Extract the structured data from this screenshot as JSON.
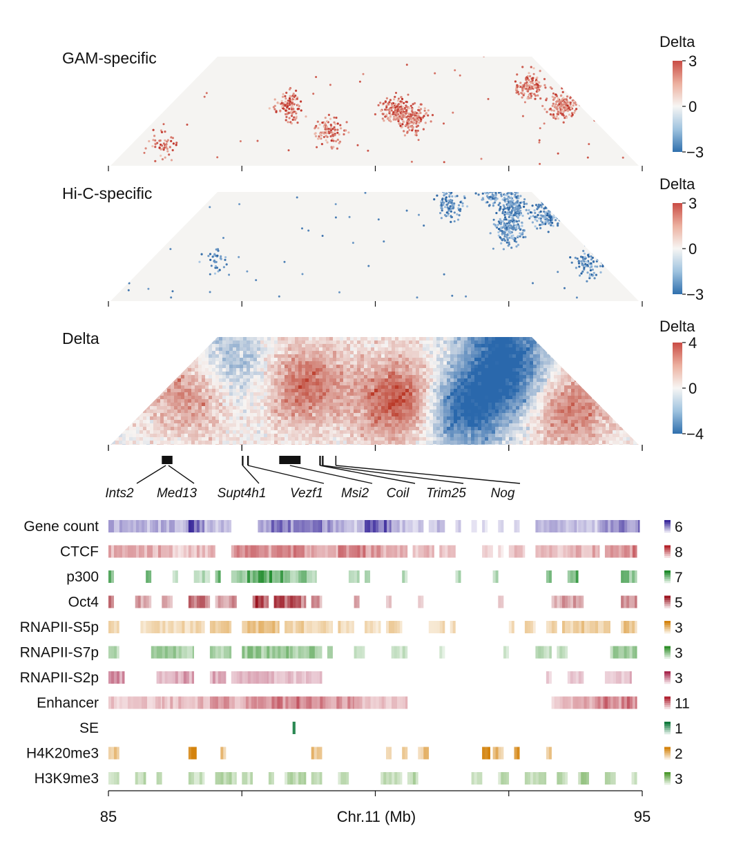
{
  "chart_data": {
    "type": "heatmap",
    "genomic_axis": {
      "title": "Chr.11 (Mb)",
      "range_mb": [
        85,
        95
      ],
      "tick_values_mb": [
        85,
        87.5,
        90,
        92.5,
        95
      ],
      "tick_labels": [
        "85",
        "",
        "",
        "",
        "95"
      ]
    },
    "contact_maps": [
      {
        "title": "GAM-specific",
        "colorbar": {
          "title": "Delta",
          "min": -3,
          "max": 3,
          "ticks": [
            "3",
            "0",
            "−3"
          ]
        },
        "sign": "positive",
        "hotspots_mb": [
          {
            "i": 87.3,
            "j": 89.5,
            "density": 0.7
          },
          {
            "i": 88.5,
            "j": 89.8,
            "density": 0.6
          },
          {
            "i": 89.3,
            "j": 91.4,
            "density": 0.8
          },
          {
            "i": 89.8,
            "j": 91.6,
            "density": 1.0
          },
          {
            "i": 91.4,
            "j": 94.4,
            "density": 0.8
          },
          {
            "i": 92.4,
            "j": 94.6,
            "density": 0.9
          },
          {
            "i": 85.6,
            "j": 86.4,
            "density": 0.3
          }
        ]
      },
      {
        "title": "Hi-C-specific",
        "colorbar": {
          "title": "Delta",
          "min": -3,
          "max": 3,
          "ticks": [
            "3",
            "0",
            "−3"
          ]
        },
        "sign": "negative",
        "hotspots_mb": [
          {
            "i": 89.6,
            "j": 93.2,
            "density": 0.6
          },
          {
            "i": 90.2,
            "j": 94.2,
            "density": 0.6
          },
          {
            "i": 90.8,
            "j": 94.4,
            "density": 1.0
          },
          {
            "i": 91.2,
            "j": 93.8,
            "density": 0.9
          },
          {
            "i": 91.6,
            "j": 94.8,
            "density": 0.8
          },
          {
            "i": 93.3,
            "j": 94.7,
            "density": 0.5
          },
          {
            "i": 86.3,
            "j": 87.8,
            "density": 0.2
          }
        ]
      },
      {
        "title": "Delta",
        "colorbar": {
          "title": "Delta",
          "min": -4,
          "max": 4,
          "ticks": [
            "4",
            "0",
            "−4"
          ]
        },
        "sign": "both",
        "hotspots_mb": [
          {
            "i": 85.5,
            "j": 87.5,
            "value": 2.0
          },
          {
            "i": 87.5,
            "j": 89.8,
            "value": 2.5
          },
          {
            "i": 89.6,
            "j": 91.3,
            "value": 3.2
          },
          {
            "i": 90.9,
            "j": 92.3,
            "value": -3.5
          },
          {
            "i": 91.2,
            "j": 93.8,
            "value": -3.0
          },
          {
            "i": 90.2,
            "j": 94.5,
            "value": -2.2
          },
          {
            "i": 92.8,
            "j": 94.3,
            "value": 2.4
          },
          {
            "i": 85.8,
            "j": 88.8,
            "value": -1.6
          }
        ]
      }
    ],
    "genes": [
      {
        "name": "Ints2",
        "start_mb": 86.0,
        "end_mb": 86.15
      },
      {
        "name": "Med13",
        "start_mb": 86.05,
        "end_mb": 86.2
      },
      {
        "name": "Supt4h1",
        "start_mb": 87.5,
        "end_mb": 87.53
      },
      {
        "name": "Vezf1",
        "start_mb": 87.6,
        "end_mb": 87.63
      },
      {
        "name": "Msi2",
        "start_mb": 88.2,
        "end_mb": 88.6
      },
      {
        "name": "Coil",
        "start_mb": 88.95,
        "end_mb": 88.98
      },
      {
        "name": "Trim25",
        "start_mb": 89.0,
        "end_mb": 89.03
      },
      {
        "name": "Nog",
        "start_mb": 89.25,
        "end_mb": 89.27
      }
    ],
    "tracks": [
      {
        "name": "Gene count",
        "max": "6",
        "color": "#3b2a9c",
        "segments_mb": [
          [
            85.0,
            86.5,
            0.35
          ],
          [
            86.5,
            86.8,
            0.7
          ],
          [
            86.8,
            87.3,
            0.3
          ],
          [
            87.8,
            88.0,
            0.4
          ],
          [
            88.0,
            89.0,
            0.6
          ],
          [
            89.0,
            89.5,
            0.45
          ],
          [
            89.5,
            89.8,
            0.25
          ],
          [
            89.8,
            90.3,
            0.7
          ],
          [
            90.3,
            90.7,
            0.3
          ],
          [
            90.7,
            90.9,
            0.25
          ],
          [
            91.0,
            91.3,
            0.3
          ],
          [
            91.5,
            91.6,
            0.2
          ],
          [
            91.8,
            91.9,
            0.15
          ],
          [
            92.0,
            92.1,
            0.15
          ],
          [
            92.3,
            92.4,
            0.2
          ],
          [
            92.6,
            92.7,
            0.2
          ],
          [
            93.0,
            93.8,
            0.3
          ],
          [
            93.8,
            94.2,
            0.25
          ],
          [
            94.2,
            94.95,
            0.55
          ]
        ]
      },
      {
        "name": "CTCF",
        "max": "8",
        "color": "#b3222a",
        "segments_mb": [
          [
            85.0,
            86.2,
            0.35
          ],
          [
            86.2,
            86.5,
            0.2
          ],
          [
            86.5,
            87.0,
            0.3
          ],
          [
            87.3,
            88.0,
            0.45
          ],
          [
            88.0,
            88.8,
            0.5
          ],
          [
            88.8,
            89.3,
            0.35
          ],
          [
            89.3,
            90.1,
            0.5
          ],
          [
            90.1,
            90.6,
            0.3
          ],
          [
            90.7,
            91.1,
            0.3
          ],
          [
            91.2,
            91.5,
            0.25
          ],
          [
            92.0,
            92.2,
            0.2
          ],
          [
            92.3,
            92.4,
            0.15
          ],
          [
            92.5,
            92.8,
            0.3
          ],
          [
            93.0,
            93.6,
            0.3
          ],
          [
            93.6,
            94.2,
            0.35
          ],
          [
            94.3,
            94.9,
            0.5
          ]
        ]
      },
      {
        "name": "p300",
        "max": "7",
        "color": "#1d8a2a",
        "segments_mb": [
          [
            85.0,
            85.1,
            0.6
          ],
          [
            85.7,
            85.8,
            0.7
          ],
          [
            86.2,
            86.3,
            0.3
          ],
          [
            86.6,
            86.9,
            0.3
          ],
          [
            87.0,
            87.1,
            0.6
          ],
          [
            87.3,
            87.6,
            0.4
          ],
          [
            87.6,
            88.3,
            0.7
          ],
          [
            88.3,
            88.9,
            0.45
          ],
          [
            89.5,
            89.7,
            0.3
          ],
          [
            89.8,
            89.9,
            0.3
          ],
          [
            90.5,
            90.6,
            0.3
          ],
          [
            91.5,
            91.6,
            0.3
          ],
          [
            92.2,
            92.3,
            0.3
          ],
          [
            93.2,
            93.3,
            0.5
          ],
          [
            93.6,
            93.8,
            0.6
          ],
          [
            94.6,
            94.9,
            0.5
          ]
        ]
      },
      {
        "name": "Oct4",
        "max": "5",
        "color": "#9b1420",
        "segments_mb": [
          [
            85.0,
            85.1,
            0.55
          ],
          [
            85.5,
            85.8,
            0.4
          ],
          [
            86.0,
            86.2,
            0.3
          ],
          [
            86.5,
            86.9,
            0.5
          ],
          [
            87.0,
            87.4,
            0.4
          ],
          [
            87.7,
            88.0,
            0.7
          ],
          [
            88.1,
            88.3,
            0.65
          ],
          [
            88.3,
            88.7,
            0.6
          ],
          [
            88.8,
            89.0,
            0.4
          ],
          [
            89.6,
            89.7,
            0.3
          ],
          [
            90.2,
            90.3,
            0.25
          ],
          [
            90.8,
            90.9,
            0.2
          ],
          [
            92.3,
            92.4,
            0.2
          ],
          [
            93.3,
            93.5,
            0.3
          ],
          [
            93.5,
            93.9,
            0.4
          ],
          [
            94.6,
            94.9,
            0.45
          ]
        ]
      },
      {
        "name": "RNAPII-S5p",
        "max": "3",
        "color": "#d4840f",
        "segments_mb": [
          [
            85.0,
            85.2,
            0.35
          ],
          [
            85.6,
            86.8,
            0.3
          ],
          [
            86.9,
            87.3,
            0.35
          ],
          [
            87.5,
            88.2,
            0.45
          ],
          [
            88.3,
            89.2,
            0.35
          ],
          [
            89.3,
            89.6,
            0.3
          ],
          [
            89.8,
            90.1,
            0.25
          ],
          [
            90.2,
            90.5,
            0.3
          ],
          [
            91.0,
            91.3,
            0.3
          ],
          [
            91.4,
            91.5,
            0.3
          ],
          [
            92.5,
            92.6,
            0.3
          ],
          [
            92.8,
            93.0,
            0.3
          ],
          [
            93.2,
            93.4,
            0.3
          ],
          [
            93.5,
            94.4,
            0.4
          ],
          [
            94.6,
            94.9,
            0.45
          ]
        ]
      },
      {
        "name": "RNAPII-S7p",
        "max": "3",
        "color": "#2f8f2a",
        "segments_mb": [
          [
            85.0,
            85.2,
            0.35
          ],
          [
            85.8,
            86.6,
            0.4
          ],
          [
            86.9,
            87.3,
            0.35
          ],
          [
            87.5,
            88.4,
            0.45
          ],
          [
            88.4,
            89.0,
            0.45
          ],
          [
            89.1,
            89.2,
            0.3
          ],
          [
            89.6,
            89.8,
            0.3
          ],
          [
            90.3,
            90.6,
            0.25
          ],
          [
            91.2,
            91.3,
            0.2
          ],
          [
            92.4,
            92.5,
            0.2
          ],
          [
            93.0,
            93.3,
            0.3
          ],
          [
            93.4,
            93.6,
            0.3
          ],
          [
            94.4,
            94.9,
            0.4
          ]
        ]
      },
      {
        "name": "RNAPII-S2p",
        "max": "3",
        "color": "#a8284e",
        "segments_mb": [
          [
            85.0,
            85.3,
            0.5
          ],
          [
            85.9,
            86.2,
            0.35
          ],
          [
            86.2,
            86.6,
            0.4
          ],
          [
            86.9,
            87.2,
            0.4
          ],
          [
            87.3,
            88.0,
            0.35
          ],
          [
            88.0,
            88.7,
            0.3
          ],
          [
            88.7,
            89.0,
            0.25
          ],
          [
            93.2,
            93.3,
            0.25
          ],
          [
            93.6,
            93.9,
            0.3
          ],
          [
            94.3,
            94.8,
            0.3
          ]
        ]
      },
      {
        "name": "Enhancer",
        "max": "11",
        "color": "#b02232",
        "segments_mb": [
          [
            85.0,
            86.0,
            0.25
          ],
          [
            86.0,
            86.9,
            0.3
          ],
          [
            86.9,
            87.8,
            0.4
          ],
          [
            87.8,
            88.6,
            0.55
          ],
          [
            88.6,
            89.6,
            0.45
          ],
          [
            89.6,
            90.2,
            0.3
          ],
          [
            90.2,
            90.6,
            0.25
          ],
          [
            93.3,
            93.7,
            0.25
          ],
          [
            93.7,
            94.3,
            0.45
          ],
          [
            94.3,
            94.9,
            0.55
          ]
        ]
      },
      {
        "name": "SE",
        "max": "1",
        "color": "#0f7a3c",
        "segments_mb": [
          [
            88.45,
            88.5,
            1.0
          ]
        ]
      },
      {
        "name": "H4K20me3",
        "max": "2",
        "color": "#d4830d",
        "segments_mb": [
          [
            85.0,
            85.2,
            0.45
          ],
          [
            86.5,
            86.65,
            0.8
          ],
          [
            87.1,
            87.2,
            0.5
          ],
          [
            88.8,
            89.0,
            0.45
          ],
          [
            90.2,
            90.3,
            0.35
          ],
          [
            90.5,
            90.6,
            0.35
          ],
          [
            90.8,
            91.0,
            0.45
          ],
          [
            92.0,
            92.15,
            0.7
          ],
          [
            92.2,
            92.4,
            0.5
          ],
          [
            92.6,
            92.7,
            0.8
          ],
          [
            93.2,
            93.3,
            0.4
          ]
        ]
      },
      {
        "name": "H3K9me3",
        "max": "3",
        "color": "#4f9a30",
        "segments_mb": [
          [
            85.0,
            85.2,
            0.3
          ],
          [
            85.5,
            85.7,
            0.35
          ],
          [
            85.9,
            86.0,
            0.3
          ],
          [
            86.5,
            86.8,
            0.3
          ],
          [
            87.0,
            87.4,
            0.35
          ],
          [
            87.5,
            87.7,
            0.3
          ],
          [
            88.0,
            88.1,
            0.3
          ],
          [
            88.3,
            88.7,
            0.35
          ],
          [
            88.8,
            89.0,
            0.3
          ],
          [
            89.3,
            89.5,
            0.3
          ],
          [
            90.1,
            90.5,
            0.3
          ],
          [
            90.6,
            90.8,
            0.35
          ],
          [
            91.8,
            92.0,
            0.3
          ],
          [
            92.3,
            92.5,
            0.35
          ],
          [
            92.8,
            93.2,
            0.3
          ],
          [
            93.4,
            93.6,
            0.35
          ],
          [
            93.8,
            94.0,
            0.45
          ],
          [
            94.3,
            94.5,
            0.35
          ],
          [
            94.8,
            94.9,
            0.35
          ]
        ]
      }
    ]
  }
}
